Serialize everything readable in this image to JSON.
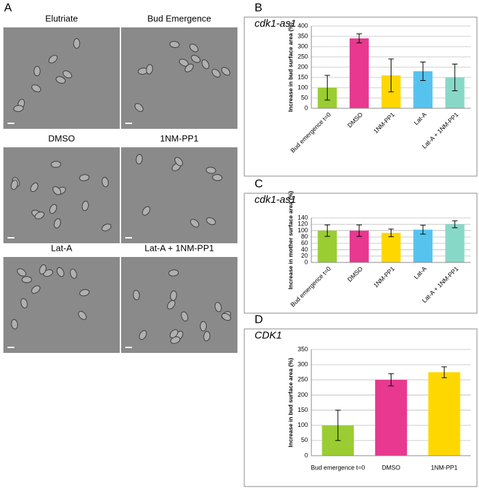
{
  "figure": {
    "panel_label": "A",
    "images": [
      "Elutriate",
      "Bud Emergence",
      "DMSO",
      "1NM-PP1",
      "Lat-A",
      "Lat-A + 1NM-PP1"
    ]
  },
  "chart_data": [
    {
      "type": "bar",
      "panel_label": "B",
      "title": "cdk1-as1",
      "ylabel": "Increase in bud surface area (%)",
      "categories": [
        "Bud emergence t=0",
        "DMSO",
        "1NM-PP1",
        "Lat-A",
        "Lat-A + 1NM-PP1"
      ],
      "values": [
        100,
        340,
        160,
        180,
        150
      ],
      "errors": [
        60,
        22,
        80,
        45,
        65
      ],
      "colors": [
        "#9acd32",
        "#e8388f",
        "#ffd700",
        "#56c3ef",
        "#88d8c8"
      ],
      "ylim": [
        0,
        400
      ],
      "yticks": [
        0,
        50,
        100,
        150,
        200,
        250,
        300,
        350,
        400
      ],
      "grid": true
    },
    {
      "type": "bar",
      "panel_label": "C",
      "title": "cdk1-as1",
      "ylabel": "Increase in mother surface area (%)",
      "categories": [
        "Bud emergence t=0",
        "DMSO",
        "1NM-PP1",
        "Lat-A",
        "Lat-A + 1NM-PP1"
      ],
      "values": [
        100,
        100,
        93,
        103,
        120
      ],
      "errors": [
        18,
        18,
        12,
        14,
        11
      ],
      "colors": [
        "#9acd32",
        "#e8388f",
        "#ffd700",
        "#56c3ef",
        "#88d8c8"
      ],
      "ylim": [
        0,
        140
      ],
      "yticks": [
        0,
        20,
        40,
        60,
        80,
        100,
        120,
        140
      ],
      "grid": true
    },
    {
      "type": "bar",
      "panel_label": "D",
      "title": "CDK1",
      "ylabel": "Increase in bud surface area (%)",
      "categories": [
        "Bud emergence t=0",
        "DMSO",
        "1NM-PP1"
      ],
      "values": [
        100,
        250,
        275
      ],
      "errors": [
        50,
        20,
        18
      ],
      "colors": [
        "#9acd32",
        "#e8388f",
        "#ffd700"
      ],
      "ylim": [
        0,
        350
      ],
      "yticks": [
        0,
        50,
        100,
        150,
        200,
        250,
        300,
        350
      ],
      "grid": true
    }
  ]
}
